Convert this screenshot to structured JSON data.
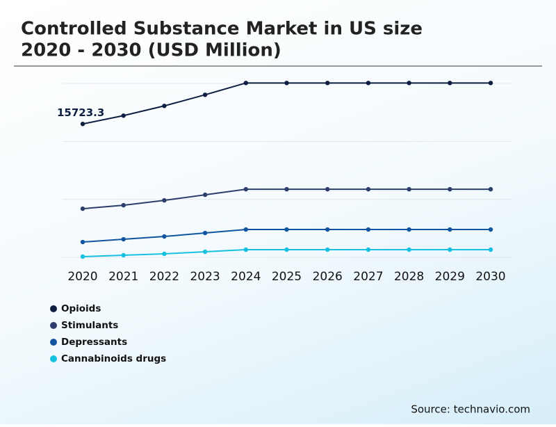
{
  "chart_data": {
    "type": "line",
    "title": "Controlled Substance Market in US size 2020 - 2030 (USD Million)",
    "title_lines": [
      "Controlled Substance Market in US size",
      "2020 - 2030 (USD Million)"
    ],
    "categories": [
      "2020",
      "2021",
      "2022",
      "2023",
      "2024",
      "2025",
      "2026",
      "2027",
      "2028",
      "2029",
      "2030"
    ],
    "series": [
      {
        "name": "Opioids",
        "color": "#0d1f40",
        "values": [
          15723.3,
          16706,
          17853,
          19163,
          20556,
          20556,
          20556,
          20556,
          20556,
          20556,
          20556
        ]
      },
      {
        "name": "Stimulants",
        "color": "#2c3e6b",
        "values": [
          5733,
          6143,
          6716,
          7371,
          8026,
          8026,
          8026,
          8026,
          8026,
          8026,
          8026
        ]
      },
      {
        "name": "Depressants",
        "color": "#1155a0",
        "values": [
          1802,
          2129,
          2457,
          2866,
          3276,
          3276,
          3276,
          3276,
          3276,
          3276,
          3276
        ]
      },
      {
        "name": "Cannabinoids drugs",
        "color": "#17c0e0",
        "values": [
          82,
          246,
          410,
          655,
          901,
          901,
          901,
          901,
          901,
          901,
          901
        ]
      }
    ],
    "ylim": [
      0,
      20500
    ],
    "grid": true,
    "legend": "bottom-left",
    "source": "Source: technavio.com"
  }
}
